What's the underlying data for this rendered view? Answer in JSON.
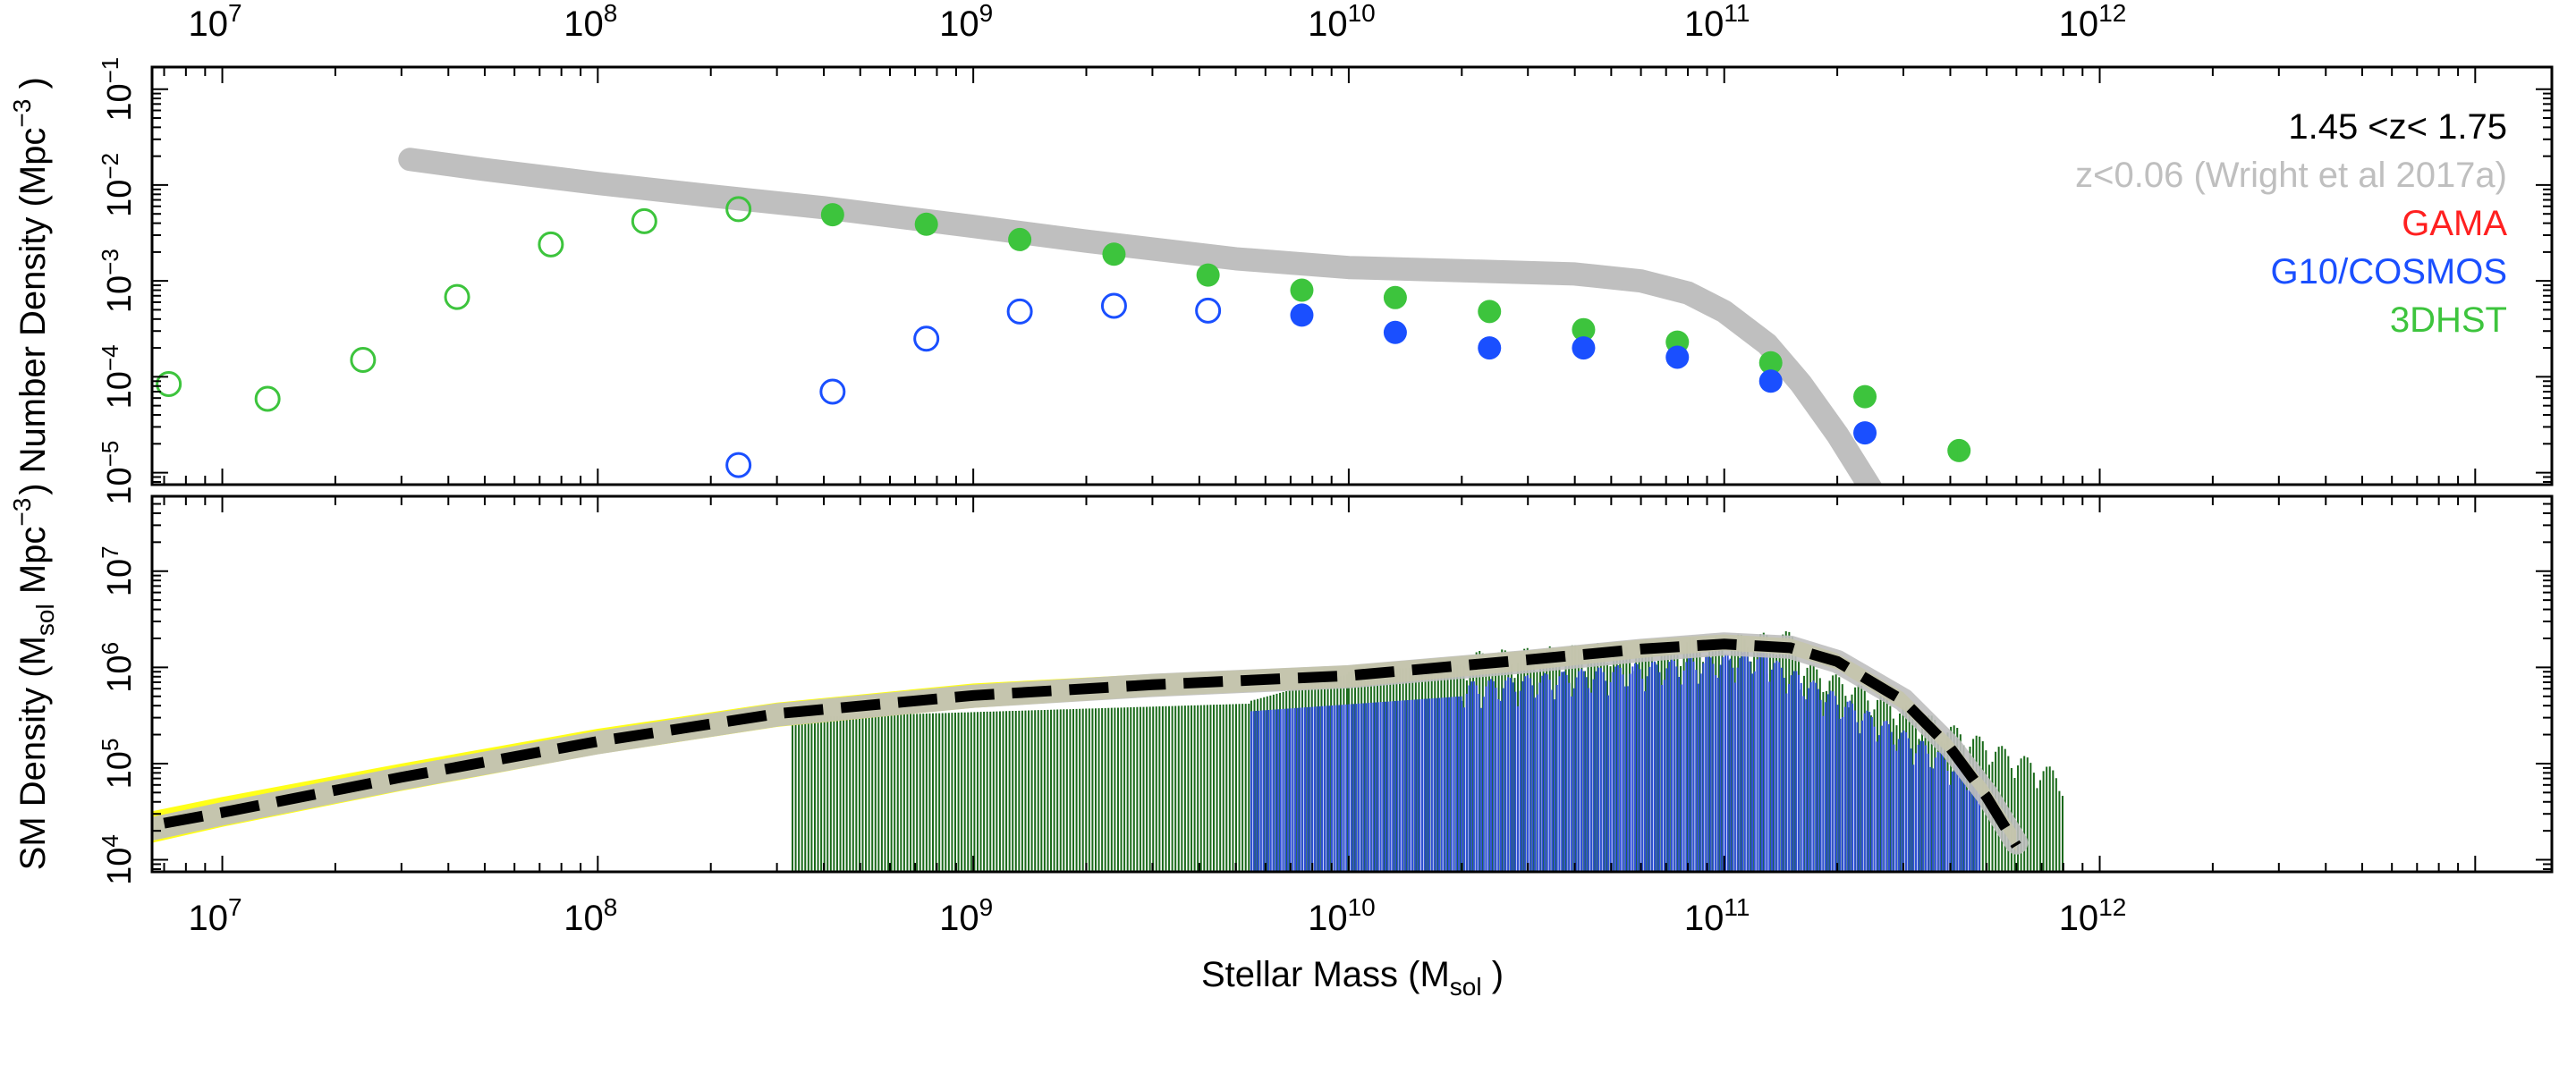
{
  "chart_data": [
    {
      "id": "number-density",
      "type": "scatter",
      "title": "",
      "xlabel": "Stellar Mass (M_sol)",
      "ylabel": "Number Density (Mpc^-3)",
      "xscale": "log",
      "yscale": "log",
      "xlim": [
        6500000,
        16000000000000
      ],
      "ylim": [
        7.5e-06,
        0.17
      ],
      "x_ticks": [
        {
          "value": 10000000,
          "mantissa": "10",
          "exp": "7"
        },
        {
          "value": 100000000,
          "mantissa": "10",
          "exp": "8"
        },
        {
          "value": 1000000000,
          "mantissa": "10",
          "exp": "9"
        },
        {
          "value": 10000000000,
          "mantissa": "10",
          "exp": "10"
        },
        {
          "value": 100000000000,
          "mantissa": "10",
          "exp": "11"
        },
        {
          "value": 1000000000000,
          "mantissa": "10",
          "exp": "12"
        }
      ],
      "y_ticks": [
        {
          "value": 0.1,
          "mantissa": "10",
          "exp": "−1"
        },
        {
          "value": 0.01,
          "mantissa": "10",
          "exp": "−2"
        },
        {
          "value": 0.001,
          "mantissa": "10",
          "exp": "−3"
        },
        {
          "value": 0.0001,
          "mantissa": "10",
          "exp": "−4"
        },
        {
          "value": 1e-05,
          "mantissa": "10",
          "exp": "−5"
        }
      ],
      "legend_position": "top-right",
      "legend": [
        {
          "label": "1.45 <z< 1.75",
          "color": "#000000"
        },
        {
          "label": "z<0.06 (Wright et al 2017a)",
          "color": "#bfbfbf"
        },
        {
          "label": "GAMA",
          "color": "#ff2020"
        },
        {
          "label": "G10/COSMOS",
          "color": "#1a4fff"
        },
        {
          "label": "3DHST",
          "color": "#3dc43d"
        }
      ],
      "series": [
        {
          "name": "z<0.06 (Wright et al 2017a)",
          "kind": "line",
          "color": "#bfbfbf",
          "x": [
            31600000,
            50000000,
            100000000,
            200000000,
            400000000,
            1000000000,
            2000000000,
            5000000000,
            10000000000,
            20000000000,
            40000000000,
            60000000000,
            80000000000,
            100000000000,
            130000000000,
            160000000000,
            200000000000,
            240000000000,
            280000000000
          ],
          "values": [
            0.0185,
            0.0145,
            0.0104,
            0.0077,
            0.0058,
            0.0037,
            0.0026,
            0.0017,
            0.00138,
            0.00128,
            0.00118,
            0.001,
            0.00075,
            0.00048,
            0.00022,
            8.5e-05,
            2.5e-05,
            8e-06,
            3e-06
          ]
        },
        {
          "name": "3DHST open",
          "kind": "open",
          "color": "#3dc43d",
          "x": [
            7200000,
            13200000,
            23700000,
            42200000,
            75000000,
            133000000,
            237000000
          ],
          "values": [
            8.4e-05,
            5.9e-05,
            0.00015,
            0.00068,
            0.0024,
            0.0042,
            0.0056
          ]
        },
        {
          "name": "3DHST filled",
          "kind": "filled",
          "color": "#3dc43d",
          "x": [
            422000000,
            750000000,
            1330000000,
            2370000000,
            4220000000,
            7500000000,
            13300000000,
            23700000000,
            42200000000,
            75000000000,
            133000000000,
            237000000000,
            422000000000
          ],
          "values": [
            0.0049,
            0.0039,
            0.0027,
            0.0019,
            0.00115,
            0.0008,
            0.00067,
            0.00048,
            0.00031,
            0.00023,
            0.00014,
            6.2e-05,
            1.7e-05
          ]
        },
        {
          "name": "G10/COSMOS open",
          "kind": "open",
          "color": "#1a4fff",
          "x": [
            237000000,
            422000000,
            750000000,
            1330000000,
            2370000000,
            4220000000
          ],
          "values": [
            1.2e-05,
            7e-05,
            0.00025,
            0.00048,
            0.00055,
            0.00049
          ]
        },
        {
          "name": "G10/COSMOS filled",
          "kind": "filled",
          "color": "#1a4fff",
          "x": [
            7500000000,
            13300000000,
            23700000000,
            42200000000,
            75000000000,
            133000000000,
            237000000000
          ],
          "values": [
            0.00044,
            0.00029,
            0.0002,
            0.0002,
            0.00016,
            9e-05,
            2.6e-05
          ]
        }
      ]
    },
    {
      "id": "sm-density",
      "type": "line",
      "title": "",
      "xlabel": "Stellar Mass (M_sol)",
      "ylabel": "SM Density (M_sol Mpc^-3)",
      "xscale": "log",
      "yscale": "log",
      "xlim": [
        6500000,
        16000000000000
      ],
      "ylim": [
        7500,
        60000000
      ],
      "x_ticks": [
        {
          "value": 10000000,
          "mantissa": "10",
          "exp": "7"
        },
        {
          "value": 100000000,
          "mantissa": "10",
          "exp": "8"
        },
        {
          "value": 1000000000,
          "mantissa": "10",
          "exp": "9"
        },
        {
          "value": 10000000000,
          "mantissa": "10",
          "exp": "10"
        },
        {
          "value": 100000000000,
          "mantissa": "10",
          "exp": "11"
        },
        {
          "value": 1000000000000,
          "mantissa": "10",
          "exp": "12"
        }
      ],
      "y_ticks": [
        {
          "value": 10000,
          "mantissa": "10",
          "exp": "4"
        },
        {
          "value": 100000,
          "mantissa": "10",
          "exp": "5"
        },
        {
          "value": 1000000,
          "mantissa": "10",
          "exp": "6"
        },
        {
          "value": 10000000,
          "mantissa": "10",
          "exp": "7"
        }
      ],
      "model_band": {
        "name": "fit uncertainty band",
        "color": "#ffff00",
        "x": [
          6500000,
          10000000,
          30000000,
          100000000,
          300000000,
          1000000000,
          3000000000,
          10000000000,
          30000000000,
          60000000000,
          100000000000,
          150000000000,
          200000000000,
          300000000000,
          400000000000,
          500000000000,
          600000000000
        ],
        "upper": [
          32000,
          45000,
          100000,
          230000,
          430000,
          680000,
          850000,
          1050000,
          1500000,
          1950000,
          2200000,
          2000000,
          1400000,
          550000,
          180000,
          60000,
          20000
        ],
        "lower": [
          15000,
          22000,
          52000,
          125000,
          240000,
          380000,
          500000,
          620000,
          930000,
          1250000,
          1500000,
          1350000,
          950000,
          360000,
          120000,
          38000,
          12000
        ]
      },
      "series": [
        {
          "name": "z<0.06 (Wright et al 2017a)",
          "kind": "line",
          "color": "#bfbfbf",
          "x": [
            6500000,
            10000000,
            30000000,
            100000000,
            300000000,
            1000000000,
            3000000000,
            10000000000,
            30000000000,
            60000000000,
            100000000000,
            150000000000,
            200000000000,
            300000000000,
            400000000000,
            500000000000,
            600000000000
          ],
          "values": [
            21000,
            30000,
            70000,
            165000,
            320000,
            500000,
            650000,
            800000,
            1150000,
            1500000,
            1750000,
            1620000,
            1150000,
            460000,
            150000,
            48000,
            15000
          ]
        },
        {
          "name": "best fit",
          "kind": "dashed",
          "color": "#000000",
          "x": [
            7000000,
            10000000,
            30000000,
            100000000,
            300000000,
            1000000000,
            3000000000,
            10000000000,
            30000000000,
            60000000000,
            100000000000,
            150000000000,
            200000000000,
            300000000000,
            400000000000,
            500000000000,
            600000000000
          ],
          "values": [
            24000,
            31000,
            72000,
            170000,
            330000,
            510000,
            660000,
            820000,
            1200000,
            1550000,
            1750000,
            1600000,
            1150000,
            450000,
            145000,
            45000,
            14000
          ]
        }
      ],
      "histograms": [
        {
          "name": "3DHST",
          "color": "#1a6a1a",
          "segments": [
            {
              "x_start": 330000000,
              "x_end": 5500000000,
              "y_start": 300000,
              "y_end": 420000
            },
            {
              "x_start": 5500000000,
              "x_end": 10000000000,
              "y_start": 450000,
              "y_end": 850000
            },
            {
              "x_start": 10000000000,
              "x_end": 160000000000,
              "y_start": 900000,
              "y_end": 1800000
            },
            {
              "x_start": 160000000000,
              "x_end": 800000000000,
              "y_start": 900000,
              "y_end": 60000
            }
          ]
        },
        {
          "name": "G10/COSMOS",
          "color": "#3050d8",
          "segments": [
            {
              "x_start": 5500000000,
              "x_end": 20000000000,
              "y_start": 350000,
              "y_end": 500000
            },
            {
              "x_start": 20000000000,
              "x_end": 130000000000,
              "y_start": 520000,
              "y_end": 1150000
            },
            {
              "x_start": 130000000000,
              "x_end": 480000000000,
              "y_start": 1000000,
              "y_end": 60000
            }
          ]
        }
      ]
    }
  ],
  "shared": {
    "xlabel_text": "Stellar Mass (M",
    "xlabel_sub": "sol",
    "xlabel_tail": " )",
    "ylabel_top_text": ") Number Density (Mpc",
    "ylabel_top_sup": "−3",
    "ylabel_top_tail": " )",
    "ylabel_bottom_text": "SM Density (M",
    "ylabel_bottom_sub": "sol",
    "ylabel_bottom_mid": " Mpc",
    "ylabel_bottom_sup": "−3",
    "ylabel_bottom_tail": " "
  }
}
